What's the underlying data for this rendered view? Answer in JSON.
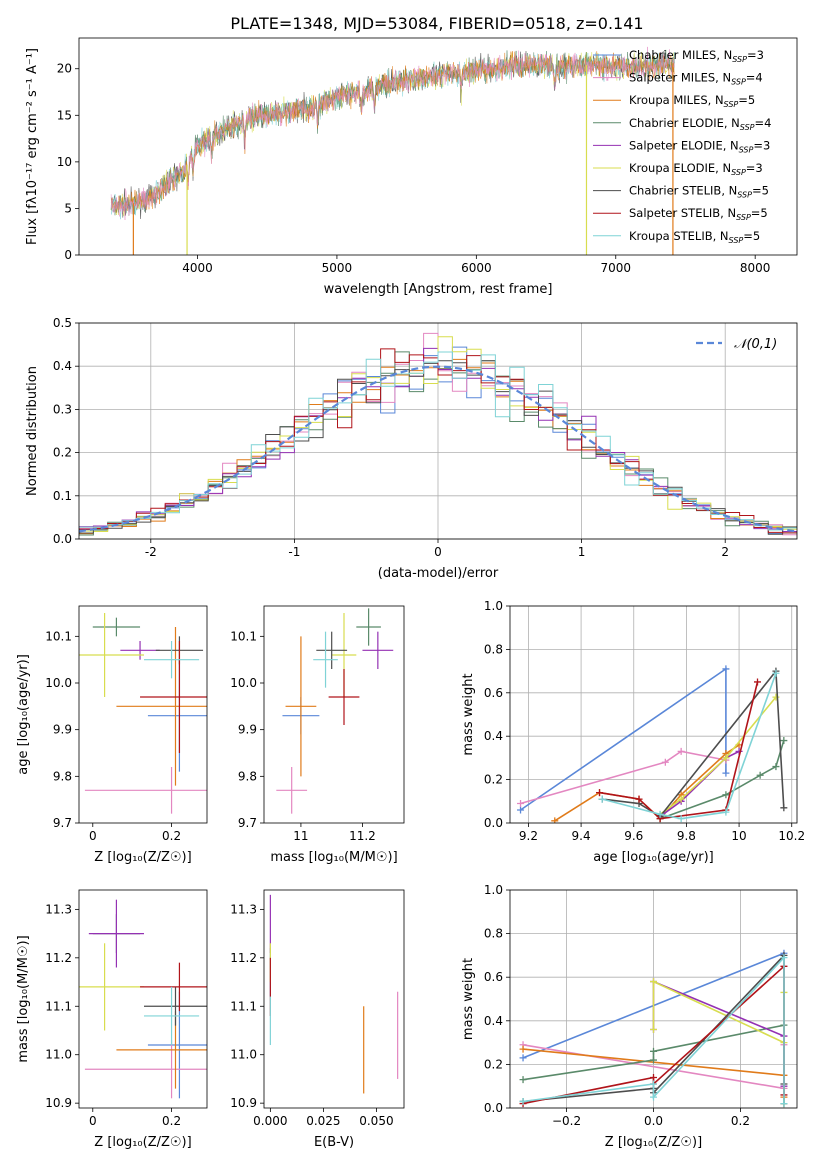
{
  "figure_title": "PLATE=1348, MJD=53084, FIBERID=0518, z=0.141",
  "colors": {
    "Chabrier MILES": "#5a87d8",
    "Salpeter MILES": "#e387c1",
    "Kroupa MILES": "#e07b1a",
    "Chabrier ELODIE": "#5a8a6a",
    "Salpeter ELODIE": "#9431b3",
    "Kroupa ELODIE": "#d8dd4f",
    "Chabrier STELIB": "#4d4d4d",
    "Salpeter STELIB": "#b0141a",
    "Kroupa STELIB": "#7fd3d6",
    "normal": "#5a87d8"
  },
  "chart_data": [
    {
      "id": "spectrum",
      "type": "line",
      "xlabel": "wavelength [Angstrom, rest frame]",
      "ylabel": "Flux [fλ10⁻¹⁷ erg cm⁻² s⁻¹ A⁻¹]",
      "xlim": [
        3150,
        8300
      ],
      "ylim": [
        0,
        23.3
      ],
      "xticks": [
        4000,
        5000,
        6000,
        7000,
        8000
      ],
      "yticks": [
        0,
        5,
        10,
        15,
        20
      ],
      "legend_position": "top-right",
      "legend": [
        {
          "label": "Chabrier MILES, N",
          "sub": "SSP",
          "eq": "=3",
          "model": "Chabrier MILES"
        },
        {
          "label": "Salpeter MILES, N",
          "sub": "SSP",
          "eq": "=4",
          "model": "Salpeter MILES"
        },
        {
          "label": "Kroupa MILES, N",
          "sub": "SSP",
          "eq": "=5",
          "model": "Kroupa MILES"
        },
        {
          "label": "Chabrier ELODIE, N",
          "sub": "SSP",
          "eq": "=4",
          "model": "Chabrier ELODIE"
        },
        {
          "label": "Salpeter ELODIE, N",
          "sub": "SSP",
          "eq": "=3",
          "model": "Salpeter ELODIE"
        },
        {
          "label": "Kroupa ELODIE, N",
          "sub": "SSP",
          "eq": "=3",
          "model": "Kroupa ELODIE"
        },
        {
          "label": "Chabrier STELIB, N",
          "sub": "SSP",
          "eq": "=5",
          "model": "Chabrier STELIB"
        },
        {
          "label": "Salpeter STELIB, N",
          "sub": "SSP",
          "eq": "=5",
          "model": "Salpeter STELIB"
        },
        {
          "label": "Kroupa STELIB, N",
          "sub": "SSP",
          "eq": "=5",
          "model": "Kroupa STELIB"
        }
      ],
      "continuum": [
        [
          3380,
          5.5
        ],
        [
          3500,
          5.4
        ],
        [
          3650,
          6
        ],
        [
          3800,
          8
        ],
        [
          3900,
          9
        ],
        [
          4000,
          11.8
        ],
        [
          4200,
          13.5
        ],
        [
          4400,
          14.8
        ],
        [
          4600,
          15.3
        ],
        [
          4800,
          15.8
        ],
        [
          5000,
          17
        ],
        [
          5200,
          17.6
        ],
        [
          5400,
          18.6
        ],
        [
          5600,
          19
        ],
        [
          5800,
          19.5
        ],
        [
          6000,
          19.8
        ],
        [
          6200,
          20.2
        ],
        [
          6400,
          20.5
        ],
        [
          6600,
          20.2
        ],
        [
          6800,
          20.4
        ],
        [
          7000,
          20.2
        ],
        [
          7200,
          20.3
        ],
        [
          7420,
          20.6
        ]
      ],
      "dropouts": [
        {
          "x": 3540,
          "model": "Kroupa MILES"
        },
        {
          "x": 3925,
          "model": "Kroupa ELODIE"
        },
        {
          "x": 6790,
          "model": "Kroupa ELODIE"
        },
        {
          "x": 7410,
          "model": "Kroupa MILES"
        }
      ]
    },
    {
      "id": "residuals",
      "type": "histogram",
      "xlabel": "(data-model)/error",
      "ylabel": "Normed distribution",
      "xlim": [
        -2.5,
        2.5
      ],
      "ylim": [
        0,
        0.5
      ],
      "xticks": [
        -2,
        -1,
        0,
        1,
        2
      ],
      "yticks": [
        0.0,
        0.1,
        0.2,
        0.3,
        0.4,
        0.5
      ],
      "bin_width": 0.1,
      "grid": true,
      "legend_position": "top-right",
      "legend_label": "𝒩(0,1)"
    },
    {
      "id": "age_vs_Z",
      "type": "errorbar",
      "xlabel": "Z [log₁₀(Z/Z☉)]",
      "ylabel": "age  [log₁₀(age/yr)]",
      "xlim": [
        -0.035,
        0.29
      ],
      "ylim": [
        9.7,
        10.165
      ],
      "xticks": [
        0.0,
        0.2
      ],
      "yticks": [
        9.7,
        9.8,
        9.9,
        10.0,
        10.1
      ],
      "points": [
        {
          "model": "Chabrier MILES",
          "x": 0.22,
          "xerr": 0.08,
          "y": 9.93,
          "yerr": 0.12
        },
        {
          "model": "Salpeter MILES",
          "x": 0.2,
          "xerr": 0.22,
          "y": 9.77,
          "yerr": 0.05
        },
        {
          "model": "Kroupa MILES",
          "x": 0.21,
          "xerr": 0.15,
          "y": 9.95,
          "yerr": 0.17
        },
        {
          "model": "Chabrier ELODIE",
          "x": 0.06,
          "xerr": 0.06,
          "y": 10.12,
          "yerr": 0.02
        },
        {
          "model": "Salpeter ELODIE",
          "x": 0.12,
          "xerr": 0.05,
          "y": 10.07,
          "yerr": 0.02
        },
        {
          "model": "Kroupa ELODIE",
          "x": 0.03,
          "xerr": 0.1,
          "y": 10.06,
          "yerr": 0.09
        },
        {
          "model": "Chabrier STELIB",
          "x": 0.22,
          "xerr": 0.06,
          "y": 10.07,
          "yerr": 0.03
        },
        {
          "model": "Salpeter STELIB",
          "x": 0.22,
          "xerr": 0.1,
          "y": 9.97,
          "yerr": 0.12
        },
        {
          "model": "Kroupa STELIB",
          "x": 0.2,
          "xerr": 0.07,
          "y": 10.05,
          "yerr": 0.04
        }
      ]
    },
    {
      "id": "age_vs_mass",
      "type": "errorbar",
      "xlabel": "mass [log₁₀(M/M☉)]",
      "ylabel": "",
      "xlim": [
        10.88,
        11.335
      ],
      "ylim": [
        9.7,
        10.165
      ],
      "xticks": [
        11.0,
        11.2
      ],
      "yticks": [
        9.7,
        9.8,
        9.9,
        10.0,
        10.1
      ],
      "points": [
        {
          "model": "Chabrier MILES",
          "x": 11.0,
          "xerr": 0.06,
          "y": 9.93,
          "yerr": 0.04
        },
        {
          "model": "Salpeter MILES",
          "x": 10.97,
          "xerr": 0.05,
          "y": 9.77,
          "yerr": 0.05
        },
        {
          "model": "Kroupa MILES",
          "x": 11.0,
          "xerr": 0.05,
          "y": 9.95,
          "yerr": 0.15
        },
        {
          "model": "Chabrier ELODIE",
          "x": 11.22,
          "xerr": 0.04,
          "y": 10.12,
          "yerr": 0.04
        },
        {
          "model": "Salpeter ELODIE",
          "x": 11.25,
          "xerr": 0.05,
          "y": 10.07,
          "yerr": 0.04
        },
        {
          "model": "Kroupa ELODIE",
          "x": 11.14,
          "xerr": 0.04,
          "y": 10.06,
          "yerr": 0.09
        },
        {
          "model": "Chabrier STELIB",
          "x": 11.1,
          "xerr": 0.05,
          "y": 10.07,
          "yerr": 0.04
        },
        {
          "model": "Salpeter STELIB",
          "x": 11.14,
          "xerr": 0.05,
          "y": 9.97,
          "yerr": 0.06
        },
        {
          "model": "Kroupa STELIB",
          "x": 11.08,
          "xerr": 0.04,
          "y": 10.05,
          "yerr": 0.06
        }
      ]
    },
    {
      "id": "mass_vs_Z",
      "type": "errorbar",
      "xlabel": "Z [log₁₀(Z/Z☉)]",
      "ylabel": "mass [log₁₀(M/M☉)]",
      "xlim": [
        -0.035,
        0.29
      ],
      "ylim": [
        10.89,
        11.34
      ],
      "xticks": [
        0.0,
        0.2
      ],
      "yticks": [
        10.9,
        11.0,
        11.1,
        11.2,
        11.3
      ],
      "points": [
        {
          "model": "Chabrier MILES",
          "x": 0.22,
          "xerr": 0.08,
          "y": 11.02,
          "yerr": 0.11
        },
        {
          "model": "Salpeter MILES",
          "x": 0.2,
          "xerr": 0.22,
          "y": 10.97,
          "yerr": 0.06
        },
        {
          "model": "Kroupa MILES",
          "x": 0.21,
          "xerr": 0.15,
          "y": 11.01,
          "yerr": 0.08
        },
        {
          "model": "Chabrier ELODIE",
          "x": 0.06,
          "xerr": 0.06,
          "y": 11.25,
          "yerr": 0.04
        },
        {
          "model": "Salpeter ELODIE",
          "x": 0.06,
          "xerr": 0.07,
          "y": 11.25,
          "yerr": 0.07
        },
        {
          "model": "Kroupa ELODIE",
          "x": 0.03,
          "xerr": 0.1,
          "y": 11.14,
          "yerr": 0.09
        },
        {
          "model": "Chabrier STELIB",
          "x": 0.21,
          "xerr": 0.08,
          "y": 11.1,
          "yerr": 0.04
        },
        {
          "model": "Salpeter STELIB",
          "x": 0.22,
          "xerr": 0.1,
          "y": 11.14,
          "yerr": 0.05
        },
        {
          "model": "Kroupa STELIB",
          "x": 0.2,
          "xerr": 0.07,
          "y": 11.08,
          "yerr": 0.06
        }
      ]
    },
    {
      "id": "mass_vs_EBV",
      "type": "errorbar",
      "xlabel": "E(B-V)",
      "ylabel": "",
      "xlim": [
        -0.003,
        0.063
      ],
      "ylim": [
        10.89,
        11.34
      ],
      "xticks": [
        0.0,
        0.025,
        0.05
      ],
      "xticklabels": [
        "0.000",
        "0.025",
        "0.050"
      ],
      "yticks": [
        10.9,
        11.0,
        11.1,
        11.2,
        11.3
      ],
      "points": [
        {
          "model": "Chabrier MILES",
          "x": 0.0,
          "xerr": 0,
          "y": 11.17,
          "yerr": 0.05
        },
        {
          "model": "Salpeter MILES",
          "x": 0.06,
          "xerr": 0,
          "y": 11.04,
          "yerr": 0.09
        },
        {
          "model": "Kroupa MILES",
          "x": 0.044,
          "xerr": 0,
          "y": 11.01,
          "yerr": 0.09
        },
        {
          "model": "Salpeter ELODIE",
          "x": 0.0,
          "xerr": 0,
          "y": 11.27,
          "yerr": 0.06
        },
        {
          "model": "Kroupa ELODIE",
          "x": 0.0,
          "xerr": 0,
          "y": 11.19,
          "yerr": 0.04
        },
        {
          "model": "Salpeter STELIB",
          "x": 0.0,
          "xerr": 0,
          "y": 11.14,
          "yerr": 0.06
        },
        {
          "model": "Kroupa STELIB",
          "x": 0.0,
          "xerr": 0,
          "y": 11.07,
          "yerr": 0.05
        }
      ]
    },
    {
      "id": "weights_vs_age",
      "type": "line",
      "xlabel": "age  [log₁₀(age/yr)]",
      "ylabel": "mass weight",
      "xlim": [
        9.13,
        10.22
      ],
      "ylim": [
        0,
        1.0
      ],
      "xticks": [
        9.2,
        9.4,
        9.6,
        9.8,
        10.0,
        10.2
      ],
      "yticks": [
        0.0,
        0.2,
        0.4,
        0.6,
        0.8,
        1.0
      ],
      "grid": true,
      "series": [
        {
          "model": "Chabrier MILES",
          "x": [
            9.17,
            9.95,
            9.95
          ],
          "y": [
            0.06,
            0.71,
            0.23
          ]
        },
        {
          "model": "Salpeter MILES",
          "x": [
            9.17,
            9.72,
            9.78,
            9.95
          ],
          "y": [
            0.09,
            0.28,
            0.33,
            0.29
          ]
        },
        {
          "model": "Kroupa MILES",
          "x": [
            9.3,
            9.47,
            9.62,
            9.7,
            9.78,
            9.95,
            10.0
          ],
          "y": [
            0.01,
            0.14,
            0.11,
            0.02,
            0.13,
            0.32,
            0.36
          ]
        },
        {
          "model": "Chabrier ELODIE",
          "x": [
            9.7,
            9.95,
            10.08,
            10.14,
            10.17
          ],
          "y": [
            0.02,
            0.13,
            0.22,
            0.26,
            0.38
          ]
        },
        {
          "model": "Salpeter ELODIE",
          "x": [
            9.7,
            9.78,
            9.95,
            10.0
          ],
          "y": [
            0.03,
            0.1,
            0.3,
            0.33
          ]
        },
        {
          "model": "Kroupa ELODIE",
          "x": [
            9.7,
            9.78,
            9.95,
            10.14
          ],
          "y": [
            0.04,
            0.11,
            0.3,
            0.58
          ]
        },
        {
          "model": "Chabrier STELIB",
          "x": [
            9.48,
            9.62,
            9.7,
            10.14,
            10.17
          ],
          "y": [
            0.11,
            0.09,
            0.03,
            0.7,
            0.07
          ]
        },
        {
          "model": "Salpeter STELIB",
          "x": [
            9.47,
            9.62,
            9.7,
            9.95,
            10.07
          ],
          "y": [
            0.14,
            0.11,
            0.02,
            0.06,
            0.65
          ]
        },
        {
          "model": "Kroupa STELIB",
          "x": [
            9.48,
            9.7,
            9.78,
            9.95,
            10.14
          ],
          "y": [
            0.11,
            0.04,
            0.02,
            0.05,
            0.69
          ]
        }
      ]
    },
    {
      "id": "weights_vs_Z",
      "type": "line",
      "xlabel": "Z [log₁₀(Z/Z☉)]",
      "ylabel": "mass weight",
      "xlim": [
        -0.33,
        0.33
      ],
      "ylim": [
        0,
        1.0
      ],
      "xticks": [
        -0.2,
        0.0,
        0.2
      ],
      "xticklabels": [
        "−0.2",
        "0.0",
        "0.2"
      ],
      "yticks": [
        0.0,
        0.2,
        0.4,
        0.6,
        0.8,
        1.0
      ],
      "grid": true,
      "series": [
        {
          "model": "Chabrier MILES",
          "x": [
            -0.3,
            0.3
          ],
          "y": [
            0.23,
            0.71
          ]
        },
        {
          "model": "Salpeter MILES",
          "x": [
            -0.3,
            0.3,
            0.3
          ],
          "y": [
            0.29,
            0.09,
            0.29
          ]
        },
        {
          "model": "Kroupa MILES",
          "x": [
            -0.3,
            0.3,
            0.3,
            0.3
          ],
          "y": [
            0.27,
            0.15,
            0.05,
            0.02
          ]
        },
        {
          "model": "Chabrier ELODIE",
          "x": [
            -0.3,
            0.0,
            0.0,
            0.3,
            0.3
          ],
          "y": [
            0.13,
            0.22,
            0.26,
            0.38,
            0.02
          ]
        },
        {
          "model": "Salpeter ELODIE",
          "x": [
            0.0,
            0.0,
            0.3,
            0.3
          ],
          "y": [
            0.36,
            0.58,
            0.33,
            0.1
          ]
        },
        {
          "model": "Kroupa ELODIE",
          "x": [
            0.0,
            0.0,
            0.3,
            0.3
          ],
          "y": [
            0.36,
            0.58,
            0.3,
            0.53
          ]
        },
        {
          "model": "Chabrier STELIB",
          "x": [
            -0.3,
            0.0,
            0.0,
            0.3,
            0.3
          ],
          "y": [
            0.03,
            0.09,
            0.07,
            0.7,
            0.11
          ]
        },
        {
          "model": "Salpeter STELIB",
          "x": [
            -0.3,
            0.0,
            0.0,
            0.3,
            0.3
          ],
          "y": [
            0.02,
            0.14,
            0.11,
            0.65,
            0.06
          ]
        },
        {
          "model": "Kroupa STELIB",
          "x": [
            -0.3,
            0.0,
            0.0,
            0.3,
            0.3
          ],
          "y": [
            0.03,
            0.11,
            0.05,
            0.69,
            0.02
          ]
        }
      ]
    }
  ]
}
